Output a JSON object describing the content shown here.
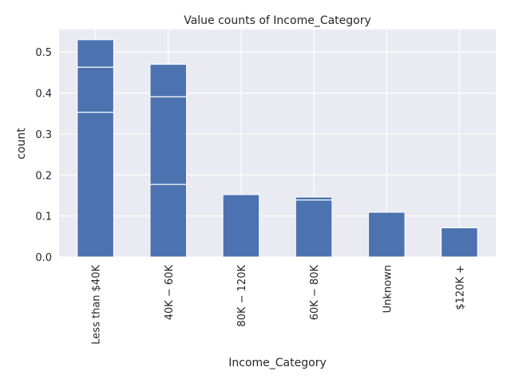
{
  "chart_data": {
    "type": "bar",
    "title": "Value counts of Income_Category",
    "xlabel": "Income_Category",
    "ylabel": "count",
    "categories": [
      "Less than $40K",
      "$40K - $60K",
      "$80K - $120K",
      "$60K - $80K",
      "Unknown",
      "$120K +"
    ],
    "category_labels": [
      "Less than $40K",
      "40K − 60K",
      "80K − 120K",
      "60K − 80K",
      "Unknown",
      "$120K +"
    ],
    "values": [
      0.53,
      0.47,
      0.152,
      0.146,
      0.109,
      0.071
    ],
    "segment_boundaries": [
      [
        0.353,
        0.463
      ],
      [
        0.177,
        0.391
      ],
      [],
      [
        0.139
      ],
      [],
      []
    ],
    "yticks": [
      0.0,
      0.1,
      0.2,
      0.3,
      0.4,
      0.5
    ],
    "ylim": [
      0.0,
      0.555
    ],
    "grid": true,
    "colors": {
      "bar": "#4c72b0",
      "plot_background": "#eaeaf2",
      "grid": "#ffffff",
      "text": "#262626"
    }
  }
}
